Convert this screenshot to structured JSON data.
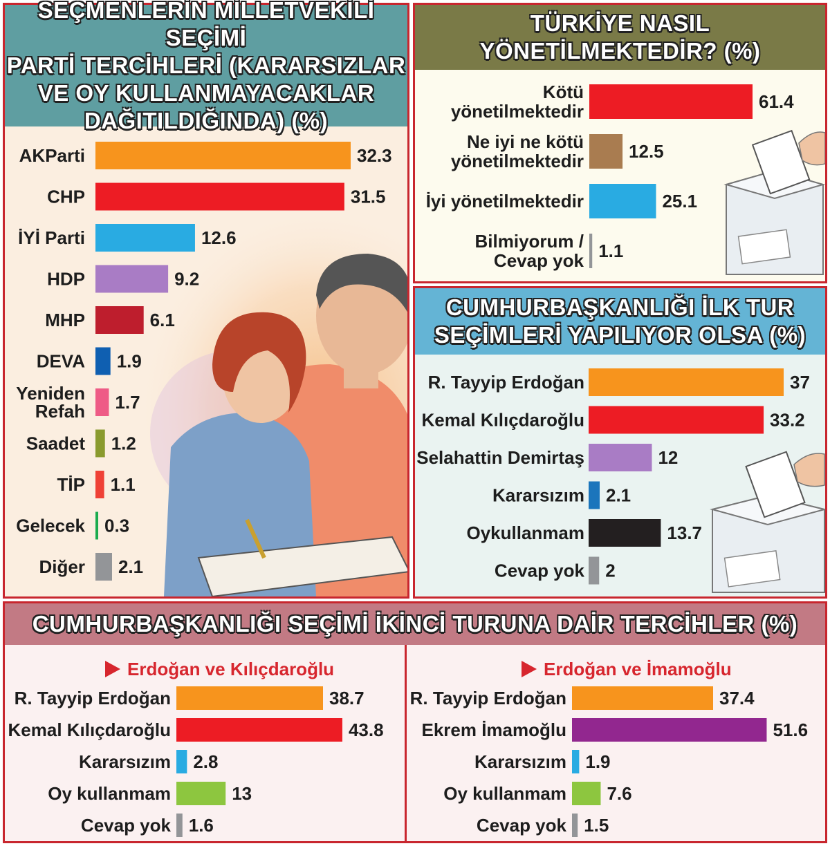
{
  "colors": {
    "orange": "#f7941d",
    "red": "#ed1c24",
    "lightblue": "#29abe2",
    "purple": "#a97cc5",
    "darkred": "#be1e2d",
    "blue": "#0f5fb1",
    "pink": "#ee5b86",
    "olive": "#8a9a2e",
    "lightred": "#ef4136",
    "green": "#1aab4e",
    "gray": "#939598",
    "brown": "#a97c50",
    "black": "#231f20",
    "magenta": "#92278f",
    "lime": "#8dc63f",
    "medblue": "#1b75bc"
  },
  "panels": {
    "p1": {
      "title_lines": [
        "SEÇMENLERİN MİLLETVEKİLİ SEÇİMİ",
        "PARTİ TERCİHLERİ (KARARSIZLAR",
        "VE OY KULLANMAYACAKLAR",
        "DAĞITILDIĞINDA) (%)"
      ]
    },
    "p2": {
      "title_lines": [
        "TÜRKİYE NASIL",
        "YÖNETİLMEKTEDİR? (%)"
      ]
    },
    "p3": {
      "title_lines": [
        "CUMHURBAŞKANLIĞI İLK TUR",
        "SEÇİMLERİ YAPILIYOR OLSA (%)"
      ]
    },
    "p4": {
      "title_lines": [
        "CUMHURBAŞKANLIĞI SEÇİMİ İKİNCİ TURUNA DAİR TERCİHLER (%)"
      ]
    }
  },
  "chart_data": [
    {
      "id": "c1",
      "type": "bar",
      "title": "SEÇMENLERİN MİLLETVEKİLİ SEÇİMİ PARTİ TERCİHLERİ (KARARSIZLAR VE OY KULLANMAYACAKLAR DAĞITILDIĞINDA) (%)",
      "categories": [
        [
          "AKParti"
        ],
        [
          "CHP"
        ],
        [
          "İYİ Parti"
        ],
        [
          "HDP"
        ],
        [
          "MHP"
        ],
        [
          "DEVA"
        ],
        [
          "Yeniden",
          "Refah"
        ],
        [
          "Saadet"
        ],
        [
          "TİP"
        ],
        [
          "Gelecek"
        ],
        [
          "Diğer"
        ]
      ],
      "values": [
        32.3,
        31.5,
        12.6,
        9.2,
        6.1,
        1.9,
        1.7,
        1.2,
        1.1,
        0.3,
        2.1
      ],
      "value_labels": [
        "32.3",
        "31.5",
        "12.6",
        "9.2",
        "6.1",
        "1.9",
        "1.7",
        "1.2",
        "1.1",
        "0.3",
        "2.1"
      ],
      "colors": [
        "orange",
        "red",
        "lightblue",
        "purple",
        "darkred",
        "blue",
        "pink",
        "olive",
        "lightred",
        "green",
        "gray"
      ]
    },
    {
      "id": "c2",
      "type": "bar",
      "title": "TÜRKİYE NASIL YÖNETİLMEKTEDİR? (%)",
      "categories": [
        [
          "Kötü",
          "yönetilmektedir"
        ],
        [
          "Ne iyi ne kötü",
          "yönetilmektedir"
        ],
        [
          "İyi yönetilmektedir"
        ],
        [
          "Bilmiyorum /",
          "Cevap yok"
        ]
      ],
      "values": [
        61.4,
        12.5,
        25.1,
        1.1
      ],
      "value_labels": [
        "61.4",
        "12.5",
        "25.1",
        "1.1"
      ],
      "colors": [
        "red",
        "brown",
        "lightblue",
        "gray"
      ]
    },
    {
      "id": "c3",
      "type": "bar",
      "title": "CUMHURBAŞKANLIĞI İLK TUR SEÇİMLERİ YAPILIYOR OLSA (%)",
      "categories": [
        [
          "R. Tayyip Erdoğan"
        ],
        [
          "Kemal Kılıçdaroğlu"
        ],
        [
          "Selahattin Demirtaş"
        ],
        [
          "Kararsızım"
        ],
        [
          "Oykullanmam"
        ],
        [
          "Cevap yok"
        ]
      ],
      "values": [
        37,
        33.2,
        12,
        2.1,
        13.7,
        2
      ],
      "value_labels": [
        "37",
        "33.2",
        "12",
        "2.1",
        "13.7",
        "2"
      ],
      "colors": [
        "orange",
        "red",
        "purple",
        "medblue",
        "black",
        "gray"
      ]
    },
    {
      "id": "c4",
      "type": "bar",
      "title": "CUMHURBAŞKANLIĞI SEÇİMİ İKİNCİ TURUNA DAİR TERCİHLER (%)",
      "subtitle": "Erdoğan ve Kılıçdaroğlu",
      "categories": [
        [
          "R. Tayyip Erdoğan"
        ],
        [
          "Kemal Kılıçdaroğlu"
        ],
        [
          "Kararsızım"
        ],
        [
          "Oy kullanmam"
        ],
        [
          "Cevap yok"
        ]
      ],
      "values": [
        38.7,
        43.8,
        2.8,
        13,
        1.6
      ],
      "value_labels": [
        "38.7",
        "43.8",
        "2.8",
        "13",
        "1.6"
      ],
      "colors": [
        "orange",
        "red",
        "lightblue",
        "lime",
        "gray"
      ]
    },
    {
      "id": "c5",
      "type": "bar",
      "title": "CUMHURBAŞKANLIĞI SEÇİMİ İKİNCİ TURUNA DAİR TERCİHLER (%)",
      "subtitle": "Erdoğan ve İmamoğlu",
      "categories": [
        [
          "R. Tayyip Erdoğan"
        ],
        [
          "Ekrem İmamoğlu"
        ],
        [
          "Kararsızım"
        ],
        [
          "Oy kullanmam"
        ],
        [
          "Cevap yok"
        ]
      ],
      "values": [
        37.4,
        51.6,
        1.9,
        7.6,
        1.5
      ],
      "value_labels": [
        "37.4",
        "51.6",
        "1.9",
        "7.6",
        "1.5"
      ],
      "colors": [
        "orange",
        "magenta",
        "lightblue",
        "lime",
        "gray"
      ]
    }
  ]
}
